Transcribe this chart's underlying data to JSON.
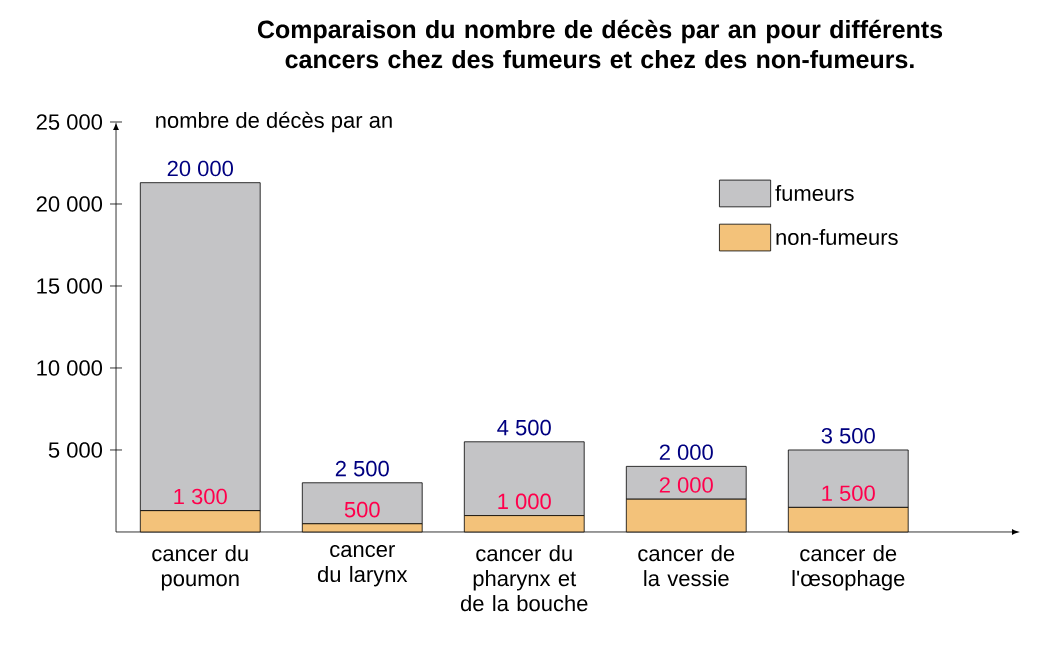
{
  "chart_data": {
    "type": "bar",
    "title": "Comparaison du nombre de décès par an pour différents cancers chez des fumeurs et chez des non-fumeurs.",
    "ylabel": "nombre de décès par an",
    "categories": [
      "cancer du poumon",
      "cancer du larynx",
      "cancer du pharynx et de la bouche",
      "cancer de la vessie",
      "cancer de l'œsophage"
    ],
    "stacked": true,
    "series": [
      {
        "name": "non-fumeurs",
        "color": "#f3c27a",
        "values": [
          1300,
          500,
          1000,
          2000,
          1500
        ],
        "value_labels": [
          "1 300",
          "500",
          "1 000",
          "2 000",
          "1 500"
        ]
      },
      {
        "name": "fumeurs",
        "color": "#c4c4c6",
        "values": [
          20000,
          2500,
          4500,
          2000,
          3500
        ],
        "value_labels": [
          "20 000",
          "2 500",
          "4 500",
          "2 000",
          "3 500"
        ]
      }
    ],
    "ylim": [
      0,
      25000
    ],
    "yticks": [
      {
        "value": 5000,
        "label": "5 000"
      },
      {
        "value": 10000,
        "label": "10 000"
      },
      {
        "value": 15000,
        "label": "15 000"
      },
      {
        "value": 20000,
        "label": "20 000"
      },
      {
        "value": 25000,
        "label": "25 000"
      }
    ],
    "legend": "top right"
  }
}
